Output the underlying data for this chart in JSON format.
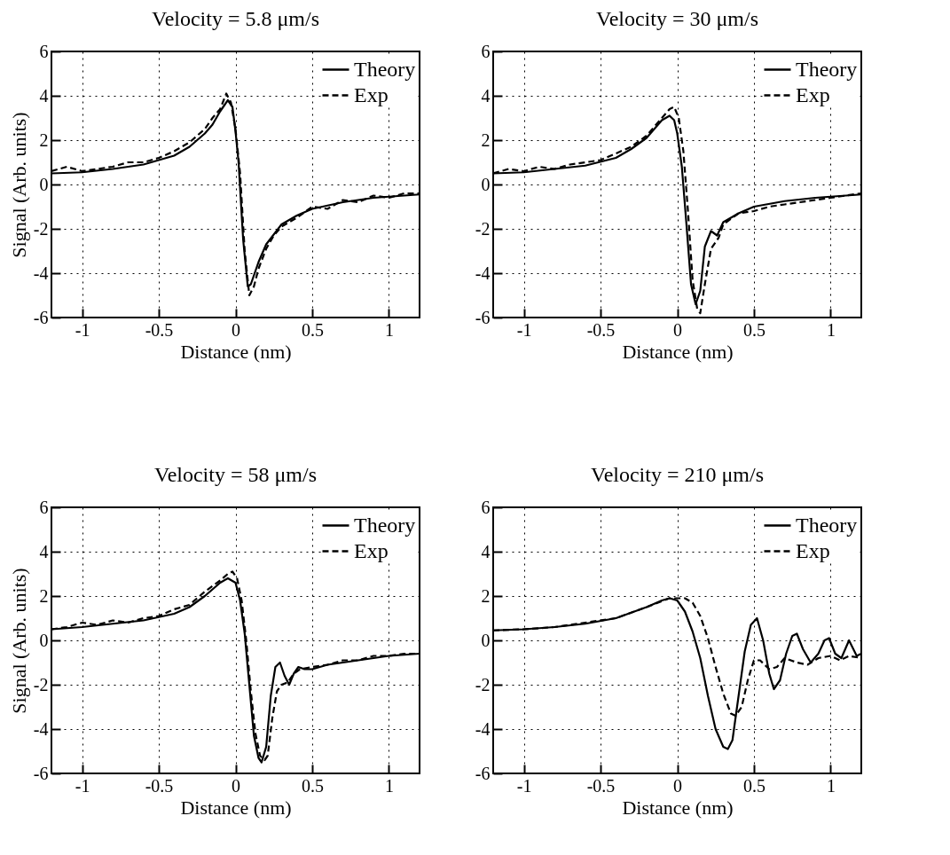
{
  "chart_data": [
    {
      "type": "line",
      "title": "Velocity = 5.8 μm/s",
      "xlabel": "Distance (nm)",
      "ylabel": "Signal (Arb. units)",
      "xlim": [
        -1.2,
        1.2
      ],
      "xticks": [
        -1,
        -0.5,
        0,
        0.5,
        1
      ],
      "ylim": [
        -6,
        6
      ],
      "yticks": [
        -6,
        -4,
        -2,
        0,
        2,
        4,
        6
      ],
      "grid": true,
      "legend": "top right",
      "series": [
        {
          "name": "Theory",
          "color": "#000000",
          "line_style": "solid",
          "x": [
            -1.2,
            -1,
            -0.8,
            -0.6,
            -0.4,
            -0.3,
            -0.2,
            -0.15,
            -0.1,
            -0.05,
            -0.02,
            0,
            0.02,
            0.05,
            0.08,
            0.1,
            0.15,
            0.2,
            0.3,
            0.4,
            0.5,
            0.7,
            0.9,
            1.1,
            1.2
          ],
          "values": [
            0.5,
            0.55,
            0.7,
            0.9,
            1.3,
            1.7,
            2.3,
            2.7,
            3.3,
            3.8,
            3.5,
            2.4,
            1.0,
            -2.5,
            -4.6,
            -4.5,
            -3.5,
            -2.7,
            -1.8,
            -1.4,
            -1.1,
            -0.8,
            -0.6,
            -0.5,
            -0.45
          ]
        },
        {
          "name": "Exp",
          "color": "#000000",
          "line_style": "dashed",
          "x": [
            -1.2,
            -1.1,
            -1,
            -0.9,
            -0.8,
            -0.7,
            -0.6,
            -0.5,
            -0.4,
            -0.3,
            -0.2,
            -0.15,
            -0.1,
            -0.06,
            -0.03,
            0,
            0.03,
            0.06,
            0.09,
            0.12,
            0.15,
            0.2,
            0.25,
            0.3,
            0.4,
            0.5,
            0.6,
            0.7,
            0.8,
            0.9,
            1,
            1.1,
            1.2
          ],
          "values": [
            0.6,
            0.8,
            0.6,
            0.7,
            0.8,
            1.0,
            1.0,
            1.2,
            1.5,
            1.9,
            2.5,
            3.0,
            3.4,
            4.1,
            3.7,
            2.5,
            0.5,
            -3.0,
            -5.0,
            -4.6,
            -3.8,
            -2.9,
            -2.3,
            -1.9,
            -1.5,
            -1.0,
            -1.1,
            -0.7,
            -0.8,
            -0.5,
            -0.6,
            -0.4,
            -0.4
          ]
        }
      ]
    },
    {
      "type": "line",
      "title": "Velocity = 30 μm/s",
      "xlabel": "Distance (nm)",
      "xlim": [
        -1.2,
        1.2
      ],
      "xticks": [
        -1,
        -0.5,
        0,
        0.5,
        1
      ],
      "ylim": [
        -6,
        6
      ],
      "yticks": [
        -6,
        -4,
        -2,
        0,
        2,
        4,
        6
      ],
      "grid": true,
      "legend": "top right",
      "series": [
        {
          "name": "Theory",
          "color": "#000000",
          "line_style": "solid",
          "x": [
            -1.2,
            -1,
            -0.8,
            -0.6,
            -0.4,
            -0.3,
            -0.2,
            -0.1,
            -0.05,
            -0.02,
            0,
            0.03,
            0.06,
            0.09,
            0.12,
            0.15,
            0.18,
            0.22,
            0.26,
            0.3,
            0.4,
            0.5,
            0.7,
            0.9,
            1.1,
            1.2
          ],
          "values": [
            0.5,
            0.55,
            0.7,
            0.85,
            1.2,
            1.6,
            2.1,
            2.9,
            3.1,
            2.9,
            2.3,
            0.8,
            -1.8,
            -4.5,
            -5.4,
            -4.8,
            -2.8,
            -2.1,
            -2.3,
            -1.7,
            -1.3,
            -1.0,
            -0.75,
            -0.6,
            -0.5,
            -0.45
          ]
        },
        {
          "name": "Exp",
          "color": "#000000",
          "line_style": "dashed",
          "x": [
            -1.2,
            -1.1,
            -1,
            -0.9,
            -0.8,
            -0.7,
            -0.6,
            -0.5,
            -0.4,
            -0.3,
            -0.2,
            -0.1,
            -0.05,
            -0.02,
            0.01,
            0.04,
            0.07,
            0.1,
            0.13,
            0.15,
            0.18,
            0.22,
            0.27,
            0.3,
            0.4,
            0.5,
            0.6,
            0.7,
            0.8,
            0.9,
            1,
            1.1,
            1.2
          ],
          "values": [
            0.5,
            0.7,
            0.6,
            0.8,
            0.7,
            0.9,
            1.0,
            1.1,
            1.4,
            1.7,
            2.2,
            3.0,
            3.4,
            3.5,
            3.0,
            1.5,
            -1.2,
            -4.3,
            -5.6,
            -5.8,
            -4.5,
            -2.9,
            -2.4,
            -1.8,
            -1.3,
            -1.2,
            -1.0,
            -0.9,
            -0.8,
            -0.7,
            -0.6,
            -0.5,
            -0.4
          ]
        }
      ]
    },
    {
      "type": "line",
      "title": "Velocity = 58 μm/s",
      "xlabel": "Distance (nm)",
      "ylabel": "Signal (Arb. units)",
      "xlim": [
        -1.2,
        1.2
      ],
      "xticks": [
        -1,
        -0.5,
        0,
        0.5,
        1
      ],
      "ylim": [
        -6,
        6
      ],
      "yticks": [
        -6,
        -4,
        -2,
        0,
        2,
        4,
        6
      ],
      "grid": true,
      "legend": "top right",
      "series": [
        {
          "name": "Theory",
          "color": "#000000",
          "line_style": "solid",
          "x": [
            -1.2,
            -1,
            -0.8,
            -0.6,
            -0.4,
            -0.3,
            -0.2,
            -0.1,
            -0.05,
            0,
            0.03,
            0.06,
            0.09,
            0.12,
            0.15,
            0.17,
            0.2,
            0.23,
            0.26,
            0.29,
            0.32,
            0.35,
            0.38,
            0.41,
            0.45,
            0.5,
            0.6,
            0.8,
            1,
            1.2
          ],
          "values": [
            0.5,
            0.6,
            0.75,
            0.9,
            1.2,
            1.5,
            2.0,
            2.6,
            2.8,
            2.6,
            1.8,
            0.3,
            -2.0,
            -4.3,
            -5.3,
            -5.5,
            -4.8,
            -2.5,
            -1.2,
            -1.0,
            -1.6,
            -2.0,
            -1.5,
            -1.2,
            -1.3,
            -1.3,
            -1.1,
            -0.9,
            -0.7,
            -0.6
          ]
        },
        {
          "name": "Exp",
          "color": "#000000",
          "line_style": "dashed",
          "x": [
            -1.2,
            -1.1,
            -1,
            -0.9,
            -0.8,
            -0.7,
            -0.6,
            -0.5,
            -0.4,
            -0.3,
            -0.2,
            -0.1,
            -0.05,
            -0.02,
            0.01,
            0.04,
            0.07,
            0.1,
            0.13,
            0.16,
            0.19,
            0.21,
            0.24,
            0.27,
            0.3,
            0.34,
            0.38,
            0.42,
            0.5,
            0.6,
            0.7,
            0.8,
            0.9,
            1,
            1.1,
            1.2
          ],
          "values": [
            0.5,
            0.6,
            0.8,
            0.7,
            0.9,
            0.8,
            1.0,
            1.1,
            1.4,
            1.6,
            2.2,
            2.7,
            3.0,
            3.1,
            2.8,
            1.8,
            0.0,
            -2.3,
            -4.2,
            -5.2,
            -5.4,
            -5.2,
            -3.5,
            -2.3,
            -2.0,
            -1.9,
            -1.5,
            -1.3,
            -1.2,
            -1.1,
            -0.9,
            -0.9,
            -0.7,
            -0.7,
            -0.6,
            -0.6
          ]
        }
      ]
    },
    {
      "type": "line",
      "title": "Velocity = 210 μm/s",
      "xlabel": "Distance (nm)",
      "xlim": [
        -1.2,
        1.2
      ],
      "xticks": [
        -1,
        -0.5,
        0,
        0.5,
        1
      ],
      "ylim": [
        -6,
        6
      ],
      "yticks": [
        -6,
        -4,
        -2,
        0,
        2,
        4,
        6
      ],
      "grid": true,
      "legend": "top right",
      "series": [
        {
          "name": "Theory",
          "color": "#000000",
          "line_style": "solid",
          "x": [
            -1.2,
            -1,
            -0.8,
            -0.6,
            -0.4,
            -0.2,
            -0.1,
            -0.05,
            0,
            0.05,
            0.1,
            0.15,
            0.2,
            0.25,
            0.3,
            0.33,
            0.36,
            0.4,
            0.44,
            0.48,
            0.52,
            0.56,
            0.6,
            0.63,
            0.67,
            0.71,
            0.75,
            0.78,
            0.82,
            0.87,
            0.92,
            0.96,
            0.99,
            1.03,
            1.07,
            1.12,
            1.17,
            1.2
          ],
          "values": [
            0.45,
            0.5,
            0.6,
            0.75,
            1.0,
            1.5,
            1.8,
            1.9,
            1.8,
            1.3,
            0.4,
            -0.8,
            -2.5,
            -4.0,
            -4.8,
            -4.9,
            -4.5,
            -2.5,
            -0.5,
            0.7,
            1.0,
            0.0,
            -1.5,
            -2.2,
            -1.8,
            -0.6,
            0.2,
            0.3,
            -0.4,
            -1.0,
            -0.6,
            0.0,
            0.1,
            -0.6,
            -0.8,
            0.0,
            -0.7,
            -0.6
          ]
        },
        {
          "name": "Exp",
          "color": "#000000",
          "line_style": "dashed",
          "x": [
            -1.2,
            -1,
            -0.8,
            -0.6,
            -0.4,
            -0.2,
            -0.05,
            0,
            0.05,
            0.1,
            0.15,
            0.2,
            0.25,
            0.3,
            0.35,
            0.38,
            0.42,
            0.46,
            0.5,
            0.54,
            0.6,
            0.65,
            0.7,
            0.78,
            0.85,
            0.92,
            1,
            1.06,
            1.12,
            1.2
          ],
          "values": [
            0.45,
            0.5,
            0.6,
            0.8,
            1.0,
            1.5,
            1.9,
            1.9,
            1.9,
            1.7,
            1.1,
            0.1,
            -1.2,
            -2.4,
            -3.3,
            -3.4,
            -3.0,
            -1.8,
            -0.9,
            -0.9,
            -1.3,
            -1.2,
            -0.8,
            -1.0,
            -1.1,
            -0.8,
            -0.7,
            -0.9,
            -0.7,
            -0.8
          ]
        }
      ]
    }
  ]
}
